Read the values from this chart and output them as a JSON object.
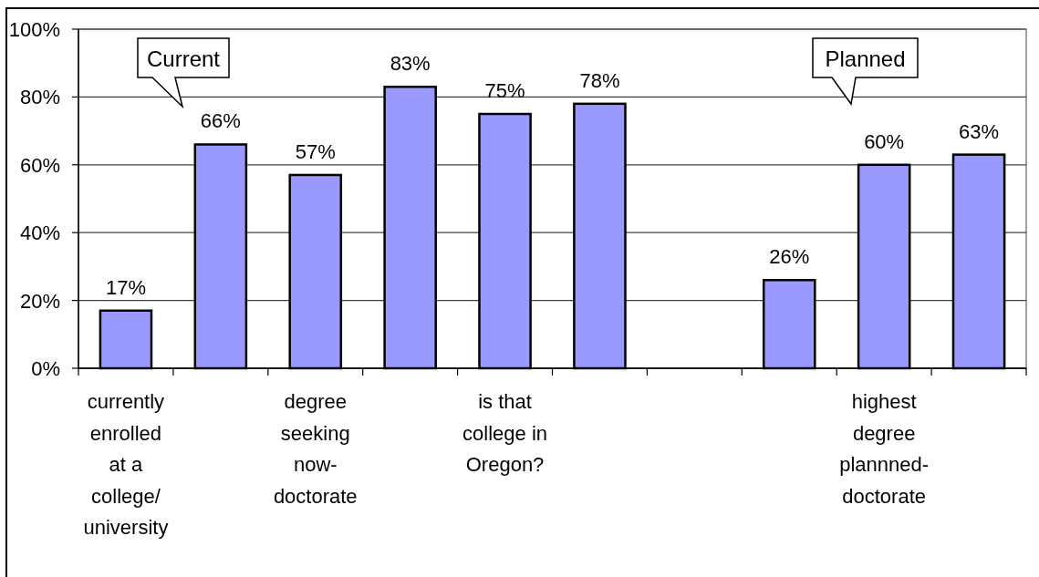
{
  "chart_data": {
    "type": "bar",
    "categories": [
      "currently enrolled at a college/ university",
      null,
      "degree seeking now-doctorate",
      null,
      "is that college in Oregon?",
      null,
      null,
      null,
      "highest degree plannned-doctorate",
      null
    ],
    "values": [
      17,
      66,
      57,
      83,
      75,
      78,
      null,
      26,
      60,
      63
    ],
    "value_labels": [
      "17%",
      "66%",
      "57%",
      "83%",
      "75%",
      "78%",
      null,
      "26%",
      "60%",
      "63%"
    ],
    "color": "#9999ff",
    "ylim": [
      0,
      100
    ],
    "yticks": [
      {
        "value": 0,
        "label": "0%"
      },
      {
        "value": 20,
        "label": "20%"
      },
      {
        "value": 40,
        "label": "40%"
      },
      {
        "value": 60,
        "label": "60%"
      },
      {
        "value": 80,
        "label": "80%"
      },
      {
        "value": 100,
        "label": "100%"
      }
    ],
    "grid": "y",
    "annotations": [
      "Current",
      "Planned"
    ]
  }
}
